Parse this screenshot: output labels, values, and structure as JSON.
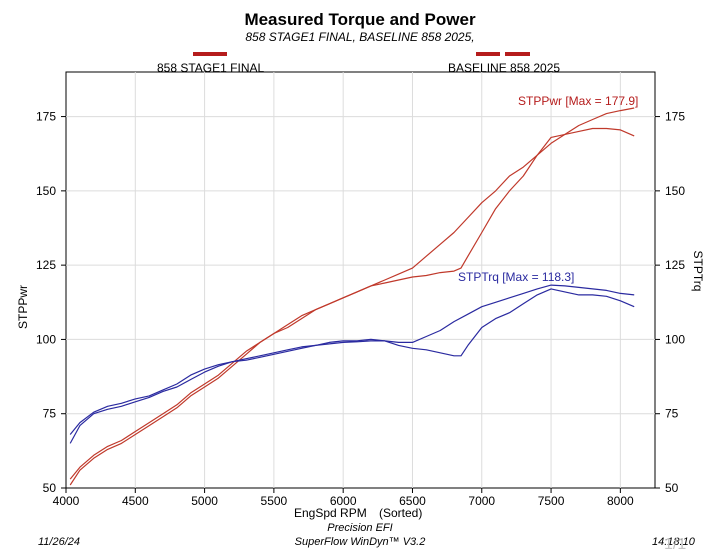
{
  "chart_data": {
    "type": "line",
    "title": "Measured Torque and Power",
    "subtitle": "858 STAGE1 FINAL, BASELINE 858 2025,",
    "legend": [
      {
        "name": "858 STAGE1 FINAL",
        "color": "#b51c1c"
      },
      {
        "name": "BASELINE 858 2025",
        "color": "#b51c1c"
      }
    ],
    "xlabel": "EngSpd RPM",
    "xlabel_note": "(Sorted)",
    "ylabel_left": "STPPwr",
    "ylabel_right": "STPTrq",
    "xlim": [
      4000,
      8250
    ],
    "ylim": [
      50,
      190
    ],
    "x_ticks": [
      4000,
      4500,
      5000,
      5500,
      6000,
      6500,
      7000,
      7500,
      8000
    ],
    "y_ticks": [
      50,
      75,
      100,
      125,
      150,
      175
    ],
    "annotations": {
      "power_max": "STPPwr [Max = 177.9]",
      "torque_max": "STPTrq [Max = 118.3]"
    },
    "series": [
      {
        "name": "858 STAGE1 FINAL - STPPwr",
        "color": "#c0392b",
        "x": [
          4030,
          4100,
          4200,
          4300,
          4400,
          4500,
          4600,
          4700,
          4800,
          4900,
          5000,
          5100,
          5200,
          5300,
          5400,
          5500,
          5600,
          5700,
          5800,
          5900,
          6000,
          6100,
          6200,
          6300,
          6400,
          6500,
          6600,
          6700,
          6800,
          6900,
          7000,
          7100,
          7200,
          7300,
          7400,
          7500,
          7600,
          7700,
          7800,
          7900,
          8000,
          8100
        ],
        "values": [
          53,
          57,
          61,
          64,
          66,
          69,
          72,
          75,
          78,
          82,
          85,
          88,
          92,
          96,
          99,
          102,
          105,
          108,
          110,
          112,
          114,
          116,
          118,
          120,
          122,
          124,
          128,
          132,
          136,
          141,
          146,
          150,
          155,
          158,
          162,
          166,
          169,
          172,
          174,
          176,
          177,
          177.9
        ]
      },
      {
        "name": "BASELINE 858 2025 - STPPwr",
        "color": "#c0392b",
        "x": [
          4030,
          4100,
          4200,
          4300,
          4400,
          4500,
          4600,
          4700,
          4800,
          4900,
          5000,
          5100,
          5200,
          5300,
          5400,
          5500,
          5600,
          5700,
          5800,
          5900,
          6000,
          6100,
          6200,
          6300,
          6400,
          6500,
          6600,
          6700,
          6800,
          6850,
          6900,
          7000,
          7100,
          7200,
          7300,
          7400,
          7500,
          7600,
          7700,
          7800,
          7900,
          8000,
          8100
        ],
        "values": [
          51,
          56,
          60,
          63,
          65,
          68,
          71,
          74,
          77,
          81,
          84,
          87,
          91,
          95,
          99,
          102,
          104,
          107,
          110,
          112,
          114,
          116,
          118,
          119,
          120,
          121,
          121.5,
          122.5,
          123,
          124,
          128,
          136,
          144,
          150,
          155,
          162,
          168,
          169,
          170,
          171,
          171,
          170.5,
          168.5
        ]
      },
      {
        "name": "858 STAGE1 FINAL - STPTrq",
        "color": "#2a2aa0",
        "x": [
          4030,
          4100,
          4200,
          4300,
          4400,
          4500,
          4600,
          4700,
          4800,
          4900,
          5000,
          5100,
          5200,
          5300,
          5400,
          5500,
          5600,
          5700,
          5800,
          5900,
          6000,
          6100,
          6200,
          6300,
          6400,
          6500,
          6600,
          6700,
          6800,
          6900,
          7000,
          7100,
          7200,
          7300,
          7400,
          7500,
          7600,
          7700,
          7800,
          7900,
          8000,
          8100
        ],
        "values": [
          68,
          72,
          75.5,
          77.5,
          78.5,
          80,
          81,
          83,
          85,
          88,
          90,
          91.5,
          92.5,
          93.5,
          94.5,
          95.5,
          96.5,
          97.5,
          98,
          98.5,
          99,
          99.2,
          99.5,
          99.5,
          99,
          99,
          101,
          103,
          106,
          108.5,
          111,
          112.5,
          114,
          115.5,
          117,
          118.3,
          118,
          117.5,
          117,
          116.5,
          115.5,
          115
        ]
      },
      {
        "name": "BASELINE 858 2025 - STPTrq",
        "color": "#2a2aa0",
        "x": [
          4030,
          4100,
          4200,
          4300,
          4400,
          4500,
          4600,
          4700,
          4800,
          4900,
          5000,
          5100,
          5200,
          5300,
          5400,
          5500,
          5600,
          5700,
          5800,
          5900,
          6000,
          6100,
          6200,
          6300,
          6400,
          6500,
          6600,
          6700,
          6800,
          6850,
          6900,
          7000,
          7100,
          7200,
          7300,
          7400,
          7500,
          7600,
          7700,
          7800,
          7900,
          8000,
          8100
        ],
        "values": [
          65,
          71,
          75,
          76.5,
          77.5,
          79,
          80.5,
          82.5,
          84,
          86.5,
          89,
          91,
          92.5,
          93,
          94,
          95,
          96,
          97,
          98,
          99,
          99.5,
          99.5,
          100,
          99.5,
          98,
          97,
          96.5,
          95.5,
          94.5,
          94.5,
          98,
          104,
          107,
          109,
          112,
          115,
          117,
          116,
          115,
          115,
          114.5,
          113,
          111
        ]
      }
    ]
  },
  "footer": {
    "date": "11/26/24",
    "company": "Precision EFI",
    "software": "SuperFlow WinDyn™ V3.2",
    "time": "14:18:10",
    "page": "1/1"
  }
}
